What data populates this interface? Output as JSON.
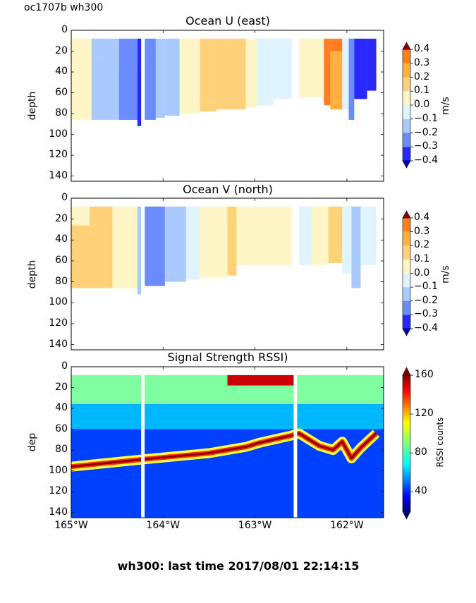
{
  "figure": {
    "corner_label": "oc1707b wh300",
    "footer": "wh300: last time 2017/08/01 22:14:15"
  },
  "chart_data": [
    {
      "type": "heatmap",
      "title": "Ocean U (east)",
      "ylabel": "depth",
      "xlabel": "",
      "x_range_deg_west": [
        165.0,
        161.6
      ],
      "y_range": [
        145,
        0
      ],
      "y_ticks": [
        "0",
        "20",
        "40",
        "60",
        "80",
        "100",
        "120",
        "140"
      ],
      "x_ticks": [],
      "colorbar": {
        "label": "m/s",
        "ticks": [
          "0.4",
          "0.3",
          "0.2",
          "0.1",
          "0.0",
          "−0.1",
          "−0.2",
          "−0.3",
          "−0.4"
        ],
        "levels": [
          -0.4,
          -0.3,
          -0.2,
          -0.1,
          0.0,
          0.1,
          0.2,
          0.3,
          0.4
        ],
        "colors": [
          "#0000cc",
          "#2929ff",
          "#6b8cff",
          "#aacaff",
          "#e0f4ff",
          "#fff6c8",
          "#ffd27a",
          "#ffb040",
          "#ff7f1e",
          "#e03a0a",
          "#8c0000"
        ]
      },
      "gaps_deg_west": [
        164.22,
        162.56
      ],
      "profile": [
        {
          "x": [
            165.0,
            164.78
          ],
          "bottom": 86,
          "segments": [
            [
              8,
              86,
              0.04
            ]
          ]
        },
        {
          "x": [
            164.78,
            164.62
          ],
          "bottom": 86,
          "segments": [
            [
              8,
              26,
              -0.12
            ],
            [
              26,
              86,
              -0.15
            ]
          ]
        },
        {
          "x": [
            164.62,
            164.48
          ],
          "bottom": 86,
          "segments": [
            [
              8,
              86,
              -0.17
            ]
          ]
        },
        {
          "x": [
            164.48,
            164.28
          ],
          "bottom": 90,
          "segments": [
            [
              8,
              86,
              -0.22
            ],
            [
              40,
              86,
              -0.28
            ]
          ]
        },
        {
          "x": [
            164.28,
            164.22
          ],
          "bottom": 92,
          "segments": [
            [
              8,
              92,
              -0.33
            ]
          ]
        },
        {
          "x": [
            164.2,
            164.08
          ],
          "bottom": 86,
          "segments": [
            [
              8,
              86,
              -0.25
            ]
          ]
        },
        {
          "x": [
            164.08,
            163.98
          ],
          "bottom": 84,
          "segments": [
            [
              8,
              84,
              -0.2
            ]
          ]
        },
        {
          "x": [
            163.98,
            163.82
          ],
          "bottom": 82,
          "segments": [
            [
              8,
              82,
              -0.12
            ]
          ]
        },
        {
          "x": [
            163.82,
            163.6
          ],
          "bottom": 80,
          "segments": [
            [
              8,
              28,
              0.04
            ],
            [
              28,
              80,
              0.05
            ]
          ]
        },
        {
          "x": [
            163.6,
            163.42
          ],
          "bottom": 78,
          "segments": [
            [
              8,
              78,
              0.13
            ]
          ]
        },
        {
          "x": [
            163.42,
            163.1
          ],
          "bottom": 76,
          "segments": [
            [
              8,
              76,
              0.15
            ]
          ]
        },
        {
          "x": [
            163.1,
            162.98
          ],
          "bottom": 74,
          "segments": [
            [
              8,
              74,
              0.04
            ]
          ]
        },
        {
          "x": [
            162.98,
            162.8
          ],
          "bottom": 72,
          "segments": [
            [
              8,
              72,
              -0.05
            ]
          ]
        },
        {
          "x": [
            162.8,
            162.6
          ],
          "bottom": 66,
          "segments": [
            [
              8,
              66,
              -0.07
            ]
          ]
        },
        {
          "x": [
            162.52,
            162.42
          ],
          "bottom": 64,
          "segments": [
            [
              8,
              64,
              0.04
            ]
          ]
        },
        {
          "x": [
            162.42,
            162.25
          ],
          "bottom": 64,
          "segments": [
            [
              8,
              64,
              0.05
            ]
          ]
        },
        {
          "x": [
            162.25,
            162.18
          ],
          "bottom": 72,
          "segments": [
            [
              8,
              72,
              0.3
            ]
          ]
        },
        {
          "x": [
            162.18,
            162.05
          ],
          "bottom": 76,
          "segments": [
            [
              8,
              20,
              0.38
            ],
            [
              20,
              76,
              0.27
            ]
          ]
        },
        {
          "x": [
            162.05,
            161.98
          ],
          "bottom": 76,
          "segments": [
            [
              8,
              76,
              -0.05
            ]
          ]
        },
        {
          "x": [
            161.98,
            161.92
          ],
          "bottom": 86,
          "segments": [
            [
              8,
              86,
              -0.22
            ]
          ]
        },
        {
          "x": [
            161.92,
            161.78
          ],
          "bottom": 66,
          "segments": [
            [
              8,
              66,
              -0.33
            ]
          ]
        },
        {
          "x": [
            161.78,
            161.68
          ],
          "bottom": 58,
          "segments": [
            [
              8,
              58,
              -0.38
            ]
          ]
        }
      ]
    },
    {
      "type": "heatmap",
      "title": "Ocean V (north)",
      "ylabel": "depth",
      "xlabel": "",
      "x_range_deg_west": [
        165.0,
        161.6
      ],
      "y_range": [
        145,
        0
      ],
      "y_ticks": [
        "0",
        "20",
        "40",
        "60",
        "80",
        "100",
        "120",
        "140"
      ],
      "x_ticks": [],
      "colorbar": {
        "label": "m/s",
        "ticks": [
          "0.4",
          "0.3",
          "0.2",
          "0.1",
          "0.0",
          "−0.1",
          "−0.2",
          "−0.3",
          "−0.4"
        ],
        "levels": [
          -0.4,
          -0.3,
          -0.2,
          -0.1,
          0.0,
          0.1,
          0.2,
          0.3,
          0.4
        ],
        "colors": [
          "#0000cc",
          "#2929ff",
          "#6b8cff",
          "#aacaff",
          "#e0f4ff",
          "#fff6c8",
          "#ffd27a",
          "#ffb040",
          "#ff7f1e",
          "#e03a0a",
          "#8c0000"
        ]
      },
      "gaps_deg_west": [
        164.22,
        162.56
      ],
      "profile": [
        {
          "x": [
            165.0,
            164.8
          ],
          "bottom": 86,
          "segments": [
            [
              8,
              26,
              0.04
            ],
            [
              26,
              86,
              0.12
            ]
          ]
        },
        {
          "x": [
            164.8,
            164.55
          ],
          "bottom": 86,
          "segments": [
            [
              8,
              86,
              0.13
            ]
          ]
        },
        {
          "x": [
            164.55,
            164.28
          ],
          "bottom": 88,
          "segments": [
            [
              8,
              86,
              0.04
            ]
          ]
        },
        {
          "x": [
            164.28,
            164.22
          ],
          "bottom": 92,
          "segments": [
            [
              8,
              92,
              -0.15
            ]
          ]
        },
        {
          "x": [
            164.2,
            163.98
          ],
          "bottom": 84,
          "segments": [
            [
              8,
              84,
              -0.22
            ]
          ]
        },
        {
          "x": [
            163.98,
            163.75
          ],
          "bottom": 80,
          "segments": [
            [
              8,
              80,
              -0.15
            ]
          ]
        },
        {
          "x": [
            163.75,
            163.6
          ],
          "bottom": 78,
          "segments": [
            [
              8,
              78,
              -0.07
            ]
          ]
        },
        {
          "x": [
            163.6,
            163.3
          ],
          "bottom": 76,
          "segments": [
            [
              8,
              76,
              0.05
            ]
          ]
        },
        {
          "x": [
            163.3,
            163.2
          ],
          "bottom": 74,
          "segments": [
            [
              8,
              74,
              0.12
            ]
          ]
        },
        {
          "x": [
            163.2,
            162.6
          ],
          "bottom": 64,
          "segments": [
            [
              8,
              64,
              0.04
            ]
          ]
        },
        {
          "x": [
            162.52,
            162.38
          ],
          "bottom": 64,
          "segments": [
            [
              8,
              64,
              -0.07
            ]
          ]
        },
        {
          "x": [
            162.38,
            162.2
          ],
          "bottom": 64,
          "segments": [
            [
              8,
              64,
              0.04
            ]
          ]
        },
        {
          "x": [
            162.2,
            162.05
          ],
          "bottom": 62,
          "segments": [
            [
              8,
              62,
              0.13
            ]
          ]
        },
        {
          "x": [
            162.05,
            161.95
          ],
          "bottom": 72,
          "segments": [
            [
              8,
              72,
              -0.05
            ]
          ]
        },
        {
          "x": [
            161.95,
            161.85
          ],
          "bottom": 86,
          "segments": [
            [
              8,
              86,
              -0.15
            ]
          ]
        },
        {
          "x": [
            161.85,
            161.68
          ],
          "bottom": 64,
          "segments": [
            [
              8,
              64,
              -0.07
            ]
          ]
        }
      ]
    },
    {
      "type": "heatmap",
      "title": "Signal Strength RSSI)",
      "ylabel": "dep",
      "xlabel": "",
      "x_range_deg_west": [
        165.0,
        161.6
      ],
      "y_range": [
        145,
        0
      ],
      "y_ticks": [
        "0",
        "20",
        "40",
        "60",
        "80",
        "100",
        "120",
        "140"
      ],
      "x_ticks": [
        "165°W",
        "164°W",
        "163°W",
        "162°W"
      ],
      "x_tick_values": [
        165,
        164,
        163,
        162
      ],
      "colorbar": {
        "label": "RSSI counts",
        "ticks": [
          "160",
          "120",
          "80",
          "40"
        ],
        "tick_values": [
          160,
          120,
          80,
          40
        ],
        "range": [
          20,
          160
        ]
      },
      "gaps_deg_west": [
        164.22,
        162.56
      ],
      "bottom_echo_depth": [
        {
          "x": 165.0,
          "depth": 96
        },
        {
          "x": 164.22,
          "depth": 89
        },
        {
          "x": 163.5,
          "depth": 83
        },
        {
          "x": 163.1,
          "depth": 77
        },
        {
          "x": 162.95,
          "depth": 73
        },
        {
          "x": 162.6,
          "depth": 66
        },
        {
          "x": 162.52,
          "depth": 64
        },
        {
          "x": 162.3,
          "depth": 76
        },
        {
          "x": 162.15,
          "depth": 80
        },
        {
          "x": 162.05,
          "depth": 72
        },
        {
          "x": 161.95,
          "depth": 88
        },
        {
          "x": 161.85,
          "depth": 78
        },
        {
          "x": 161.68,
          "depth": 64
        }
      ],
      "surface_high_patch": {
        "x": [
          163.3,
          162.56
        ],
        "depth": [
          8,
          18
        ],
        "value": 155
      }
    }
  ]
}
